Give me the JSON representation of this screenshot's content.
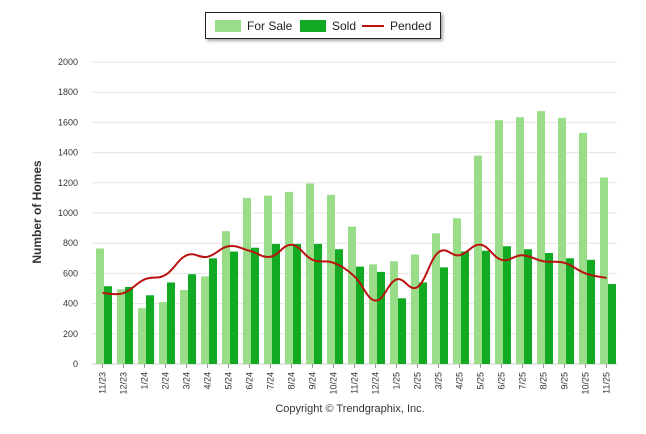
{
  "legend": {
    "for_sale": "For Sale",
    "sold": "Sold",
    "pended": "Pended"
  },
  "colors": {
    "for_sale": "#99dd88",
    "sold": "#11aa22",
    "pended": "#bb1111"
  },
  "copyright": "Copyright © Trendgraphix, Inc.",
  "chart_data": {
    "type": "bar",
    "ylabel": "Number of Homes",
    "xlabel": "",
    "title": "",
    "ylim": [
      0,
      2000
    ],
    "yticks": [
      0,
      200,
      400,
      600,
      800,
      1000,
      1200,
      1400,
      1600,
      1800,
      2000
    ],
    "grid": true,
    "legend_position": "top-center",
    "categories": [
      "11/23",
      "12/23",
      "1/24",
      "2/24",
      "3/24",
      "4/24",
      "5/24",
      "6/24",
      "7/24",
      "8/24",
      "9/24",
      "10/24",
      "11/24",
      "12/24",
      "1/25",
      "2/25",
      "3/25",
      "4/25",
      "5/25",
      "6/25",
      "7/25",
      "8/25",
      "9/25",
      "10/25",
      "11/25"
    ],
    "series": [
      {
        "name": "For Sale",
        "type": "bar",
        "values": [
          765,
          495,
          370,
          410,
          490,
          580,
          880,
          1100,
          1115,
          1140,
          1195,
          1120,
          910,
          660,
          680,
          725,
          865,
          965,
          1380,
          1615,
          1635,
          1675,
          1630,
          1530,
          1235
        ]
      },
      {
        "name": "Sold",
        "type": "bar",
        "values": [
          515,
          510,
          455,
          540,
          595,
          700,
          745,
          770,
          795,
          795,
          795,
          760,
          645,
          610,
          435,
          540,
          640,
          745,
          750,
          780,
          760,
          735,
          700,
          690,
          530
        ]
      },
      {
        "name": "Pended",
        "type": "line",
        "values": [
          470,
          470,
          560,
          590,
          720,
          710,
          780,
          750,
          710,
          790,
          690,
          670,
          580,
          420,
          560,
          510,
          740,
          720,
          790,
          690,
          720,
          680,
          670,
          600,
          570
        ]
      }
    ]
  }
}
